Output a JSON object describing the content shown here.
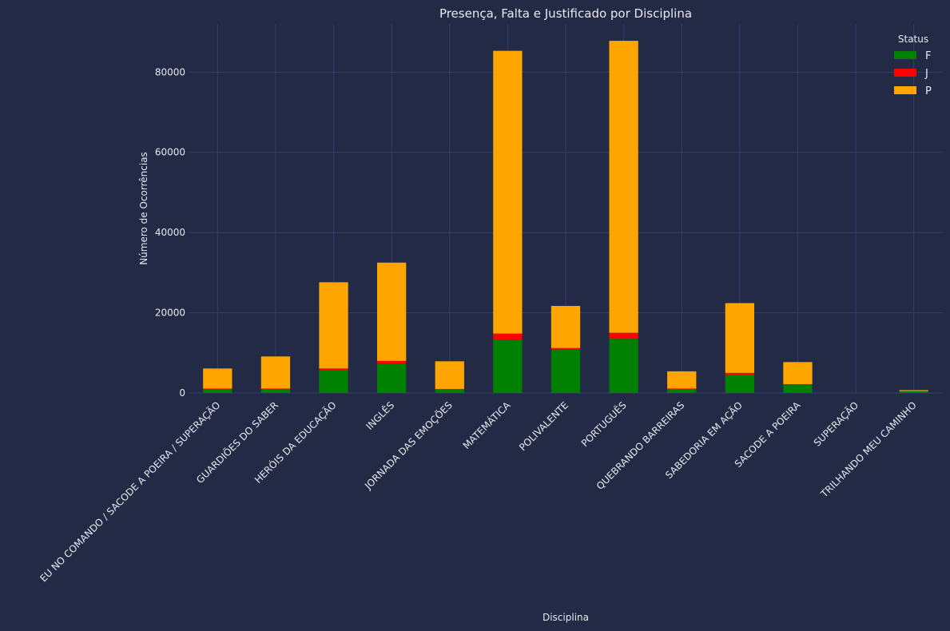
{
  "chart_data": {
    "type": "bar",
    "stacked": true,
    "title": "Presença, Falta e Justificado por Disciplina",
    "xlabel": "Disciplina",
    "ylabel": "Número de Ocorrências",
    "ylim": [
      0,
      92000
    ],
    "yticks": [
      0,
      20000,
      40000,
      60000,
      80000
    ],
    "grid": true,
    "legend": {
      "title": "Status",
      "placement": "top-right"
    },
    "categories": [
      "EU NO COMANDO / SACODE A POEIRA / SUPERAÇÃO",
      "GUARDIÕES DO SABER",
      "HERÓIS DA EDUCAÇÃO",
      "INGLÊS",
      "JORNADA DAS EMOÇÕES",
      "MATEMÁTICA",
      "POLIVALENTE",
      "PORTUGUÊS",
      "QUEBRANDO BARREIRAS",
      "SABEDORIA EM AÇÃO",
      "SACODE A POEIRA",
      "SUPERAÇÃO",
      "TRILHANDO MEU CAMINHO"
    ],
    "series": [
      {
        "name": "F",
        "color": "#008000",
        "values": [
          900,
          900,
          5600,
          7200,
          800,
          13300,
          10900,
          13500,
          1000,
          4500,
          2100,
          0,
          400
        ]
      },
      {
        "name": "J",
        "color": "#ff0000",
        "values": [
          200,
          200,
          500,
          800,
          200,
          1500,
          300,
          1500,
          100,
          500,
          100,
          0,
          50
        ]
      },
      {
        "name": "P",
        "color": "#ffa500",
        "values": [
          5000,
          8000,
          21500,
          24500,
          6900,
          70500,
          10500,
          72800,
          4300,
          17400,
          5500,
          0,
          250
        ]
      }
    ]
  }
}
